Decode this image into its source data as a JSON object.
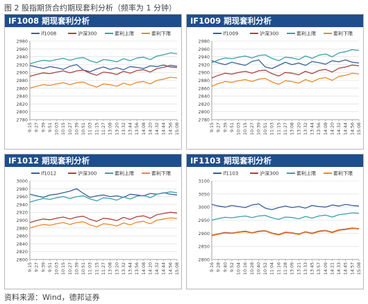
{
  "page": {
    "title": "图 2 股指期货合约期现套利分析（频率为 1 分钟）",
    "source": "资料来源：Wind，德邦证券"
  },
  "colors": {
    "header_bg": "#1f4e8c",
    "contract": "#3a5f97",
    "spot": "#a94442",
    "upper": "#3aa0aa",
    "lower": "#e88a2a"
  },
  "chart_data": [
    {
      "type": "line",
      "title": "IF1008 期现套利分析",
      "ylim": [
        2780,
        2980
      ],
      "yticks": [
        2780,
        2800,
        2820,
        2840,
        2860,
        2880,
        2900,
        2920,
        2940,
        2960,
        2980
      ],
      "x": [
        "9:15",
        "9:27",
        "9:39",
        "9:51",
        "10:03",
        "10:15",
        "10:27",
        "10:39",
        "10:51",
        "11:03",
        "11:15",
        "11:27",
        "13:08",
        "13:20",
        "13:32",
        "13:44",
        "13:56",
        "14:08",
        "14:20",
        "14:32",
        "14:44",
        "14:56",
        "15:08"
      ],
      "x_labels": [
        "9:15",
        "9:27",
        "9:39",
        "9:51",
        "10:03",
        "10:15",
        "10:27",
        "10:39",
        "10:51",
        "11:03",
        "11:15",
        "11:27",
        "13:08",
        "13:20",
        "13:32",
        "13:44",
        "13:56",
        "14:08",
        "14:20",
        "14:32",
        "14:44",
        "14:56",
        "15:08"
      ],
      "grid": true,
      "legend_position": "top",
      "series": [
        {
          "name": "if1008",
          "color_key": "contract",
          "values": [
            2918,
            2914,
            2910,
            2915,
            2912,
            2908,
            2916,
            2920,
            2906,
            2902,
            2909,
            2914,
            2908,
            2912,
            2907,
            2915,
            2913,
            2910,
            2917,
            2915,
            2919,
            2914,
            2913
          ]
        },
        {
          "name": "沪深300",
          "color_key": "spot",
          "values": [
            2890,
            2895,
            2899,
            2897,
            2901,
            2904,
            2899,
            2904,
            2906,
            2898,
            2893,
            2901,
            2899,
            2895,
            2903,
            2898,
            2905,
            2907,
            2901,
            2910,
            2913,
            2918,
            2916
          ]
        },
        {
          "name": "套利上限",
          "color_key": "upper",
          "values": [
            2922,
            2927,
            2931,
            2929,
            2933,
            2936,
            2931,
            2936,
            2938,
            2930,
            2925,
            2933,
            2931,
            2927,
            2935,
            2930,
            2937,
            2939,
            2933,
            2942,
            2945,
            2950,
            2948
          ]
        },
        {
          "name": "套利下限",
          "color_key": "lower",
          "values": [
            2860,
            2865,
            2869,
            2867,
            2871,
            2874,
            2869,
            2874,
            2876,
            2868,
            2863,
            2871,
            2869,
            2865,
            2873,
            2868,
            2875,
            2877,
            2871,
            2880,
            2883,
            2888,
            2886
          ]
        }
      ]
    },
    {
      "type": "line",
      "title": "IF1009 期现套利分析",
      "ylim": [
        2780,
        2980
      ],
      "yticks": [
        2780,
        2800,
        2820,
        2840,
        2860,
        2880,
        2900,
        2920,
        2940,
        2960,
        2980
      ],
      "x": [
        "9:15",
        "9:27",
        "9:39",
        "9:51",
        "10:03",
        "10:15",
        "10:27",
        "10:39",
        "10:51",
        "11:03",
        "11:15",
        "11:27",
        "13:08",
        "13:20",
        "13:32",
        "13:44",
        "13:56",
        "14:08",
        "14:20",
        "14:32",
        "14:44",
        "14:56",
        "15:08"
      ],
      "x_labels": [
        "9:15",
        "9:27",
        "9:39",
        "9:51",
        "10:03",
        "10:15",
        "10:27",
        "10:39",
        "10:51",
        "11:03",
        "11:15",
        "11:27",
        "13:08",
        "13:20",
        "13:32",
        "13:44",
        "13:56",
        "14:08",
        "14:20",
        "14:32",
        "14:44",
        "14:56",
        "15:08"
      ],
      "grid": true,
      "legend_position": "top",
      "series": [
        {
          "name": "if1009",
          "color_key": "contract",
          "values": [
            2930,
            2924,
            2920,
            2926,
            2922,
            2918,
            2928,
            2932,
            2914,
            2910,
            2918,
            2926,
            2920,
            2924,
            2918,
            2928,
            2925,
            2921,
            2930,
            2927,
            2932,
            2926,
            2924
          ]
        },
        {
          "name": "沪深300",
          "color_key": "spot",
          "values": [
            2886,
            2893,
            2898,
            2896,
            2900,
            2903,
            2898,
            2904,
            2906,
            2897,
            2891,
            2900,
            2898,
            2894,
            2903,
            2897,
            2905,
            2908,
            2901,
            2911,
            2914,
            2919,
            2917
          ]
        },
        {
          "name": "套利上限",
          "color_key": "upper",
          "values": [
            2925,
            2932,
            2937,
            2935,
            2939,
            2942,
            2937,
            2943,
            2945,
            2936,
            2930,
            2939,
            2937,
            2933,
            2942,
            2936,
            2944,
            2947,
            2940,
            2950,
            2953,
            2958,
            2956
          ]
        },
        {
          "name": "套利下限",
          "color_key": "lower",
          "values": [
            2865,
            2872,
            2877,
            2875,
            2879,
            2882,
            2877,
            2883,
            2885,
            2876,
            2870,
            2879,
            2877,
            2873,
            2882,
            2876,
            2884,
            2887,
            2880,
            2890,
            2893,
            2898,
            2896
          ]
        }
      ]
    },
    {
      "type": "line",
      "title": "IF1012 期现套利分析",
      "ylim": [
        2800,
        3000
      ],
      "yticks": [
        2800,
        2820,
        2840,
        2860,
        2880,
        2900,
        2920,
        2940,
        2960,
        2980,
        3000
      ],
      "x": [
        "9:15",
        "9:27",
        "9:39",
        "9:51",
        "10:03",
        "10:15",
        "10:27",
        "10:39",
        "10:51",
        "11:03",
        "11:15",
        "11:27",
        "13:08",
        "13:20",
        "13:32",
        "13:44",
        "13:56",
        "14:08",
        "14:20",
        "14:32",
        "14:44",
        "14:56",
        "15:08"
      ],
      "x_labels": [
        "9:15",
        "9:27",
        "9:39",
        "9:51",
        "10:03",
        "10:15",
        "10:27",
        "10:39",
        "10:51",
        "11:03",
        "11:15",
        "11:27",
        "13:08",
        "13:20",
        "13:32",
        "13:44",
        "13:56",
        "14:08",
        "14:20",
        "14:32",
        "14:44",
        "14:56",
        "15:08"
      ],
      "grid": true,
      "legend_position": "top",
      "series": [
        {
          "name": "if1012",
          "color_key": "contract",
          "values": [
            2966,
            2962,
            2958,
            2964,
            2966,
            2970,
            2974,
            2980,
            2968,
            2958,
            2962,
            2964,
            2960,
            2962,
            2958,
            2966,
            2964,
            2962,
            2968,
            2966,
            2970,
            2966,
            2964
          ]
        },
        {
          "name": "沪深300",
          "color_key": "spot",
          "values": [
            2894,
            2899,
            2903,
            2901,
            2905,
            2908,
            2903,
            2908,
            2910,
            2902,
            2897,
            2905,
            2903,
            2899,
            2907,
            2902,
            2909,
            2911,
            2905,
            2914,
            2917,
            2920,
            2918
          ]
        },
        {
          "name": "套利上限",
          "color_key": "upper",
          "values": [
            2946,
            2951,
            2955,
            2953,
            2957,
            2960,
            2955,
            2960,
            2962,
            2954,
            2949,
            2957,
            2955,
            2951,
            2959,
            2954,
            2961,
            2963,
            2957,
            2966,
            2969,
            2972,
            2970
          ]
        },
        {
          "name": "套利下限",
          "color_key": "lower",
          "values": [
            2880,
            2885,
            2889,
            2887,
            2891,
            2894,
            2889,
            2894,
            2896,
            2888,
            2883,
            2891,
            2889,
            2885,
            2893,
            2888,
            2895,
            2897,
            2891,
            2900,
            2903,
            2906,
            2904
          ]
        }
      ]
    },
    {
      "type": "line",
      "title": "IF1103 期现套利分析",
      "ylim": [
        2800,
        3100
      ],
      "yticks": [
        2800,
        2850,
        2900,
        2950,
        3000,
        3050,
        3100
      ],
      "x": [
        "9:16",
        "9:28",
        "9:40",
        "9:52",
        "10:04",
        "10:16",
        "10:28",
        "10:40",
        "10:52",
        "11:04",
        "11:16",
        "11:28",
        "13:09",
        "13:21",
        "13:33",
        "13:45",
        "13:57",
        "14:09",
        "14:21",
        "14:33",
        "14:45",
        "14:57",
        "15:08"
      ],
      "x_labels": [
        "9:16",
        "9:28",
        "9:40",
        "9:52",
        "10:04",
        "10:16",
        "10:28",
        "10:40",
        "10:52",
        "11:04",
        "11:16",
        "11:28",
        "13:09",
        "13:21",
        "13:33",
        "13:45",
        "13:57",
        "14:09",
        "14:21",
        "14:33",
        "14:45",
        "14:57",
        "15:08"
      ],
      "grid": true,
      "legend_position": "top",
      "series": [
        {
          "name": "if1103",
          "color_key": "contract",
          "values": [
            3010,
            3004,
            3000,
            3006,
            3002,
            2998,
            3008,
            3012,
            2996,
            2990,
            2998,
            3004,
            2998,
            3002,
            2996,
            3006,
            3002,
            3000,
            3008,
            3004,
            3010,
            3006,
            3004
          ]
        },
        {
          "name": "沪深300",
          "color_key": "spot",
          "values": [
            2892,
            2898,
            2903,
            2901,
            2905,
            2908,
            2902,
            2908,
            2910,
            2901,
            2895,
            2904,
            2902,
            2897,
            2906,
            2900,
            2908,
            2911,
            2904,
            2913,
            2916,
            2920,
            2918
          ]
        },
        {
          "name": "套利上限",
          "color_key": "upper",
          "values": [
            2950,
            2956,
            2961,
            2959,
            2963,
            2966,
            2960,
            2966,
            2968,
            2959,
            2953,
            2962,
            2960,
            2955,
            2964,
            2958,
            2966,
            2969,
            2962,
            2971,
            2974,
            2978,
            2976
          ]
        },
        {
          "name": "套利下限",
          "color_key": "lower",
          "values": [
            2890,
            2896,
            2901,
            2899,
            2903,
            2906,
            2900,
            2906,
            2908,
            2899,
            2893,
            2902,
            2900,
            2895,
            2904,
            2898,
            2906,
            2909,
            2902,
            2911,
            2914,
            2918,
            2916
          ]
        }
      ]
    }
  ]
}
